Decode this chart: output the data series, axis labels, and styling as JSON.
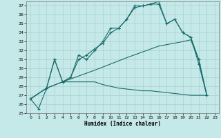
{
  "xlabel": "Humidex (Indice chaleur)",
  "xlim": [
    -0.5,
    23.5
  ],
  "ylim": [
    25,
    37.5
  ],
  "yticks": [
    25,
    26,
    27,
    28,
    29,
    30,
    31,
    32,
    33,
    34,
    35,
    36,
    37
  ],
  "xticks": [
    0,
    1,
    2,
    3,
    4,
    5,
    6,
    7,
    8,
    9,
    10,
    11,
    12,
    13,
    14,
    15,
    16,
    17,
    18,
    19,
    20,
    21,
    22,
    23
  ],
  "bg_color": "#c5e8e8",
  "grid_color": "#a8d0d0",
  "line_color": "#1a6b6b",
  "line1_x": [
    0,
    1,
    2,
    3,
    4,
    5,
    6,
    7,
    8,
    9,
    10,
    11,
    12,
    13,
    14,
    15,
    16,
    17,
    18,
    19,
    20,
    21,
    22
  ],
  "line1_y": [
    26.6,
    25.5,
    27.8,
    31.0,
    28.5,
    29.0,
    31.5,
    31.0,
    32.0,
    33.0,
    34.5,
    34.5,
    35.5,
    37.0,
    37.0,
    37.2,
    37.5,
    35.0,
    35.5,
    34.0,
    33.5,
    31.0,
    27.0
  ],
  "line2_x": [
    0,
    2,
    3,
    4,
    5,
    6,
    7,
    8,
    9,
    10,
    11,
    12,
    13,
    14,
    15,
    16,
    17,
    18,
    19,
    20,
    21,
    22
  ],
  "line2_y": [
    26.6,
    27.8,
    31.0,
    28.5,
    29.0,
    31.0,
    31.5,
    32.2,
    32.8,
    34.0,
    34.5,
    35.5,
    36.8,
    37.0,
    37.2,
    37.2,
    35.0,
    35.5,
    34.0,
    33.5,
    30.5,
    27.0
  ],
  "line3_x": [
    0,
    2,
    4,
    5,
    6,
    7,
    8,
    9,
    10,
    11,
    12,
    13,
    14,
    15,
    16,
    17,
    18,
    19,
    20,
    21,
    22
  ],
  "line3_y": [
    26.6,
    27.8,
    28.5,
    28.5,
    28.5,
    28.5,
    28.5,
    28.2,
    28.0,
    27.8,
    27.7,
    27.6,
    27.5,
    27.5,
    27.4,
    27.3,
    27.2,
    27.1,
    27.0,
    27.0,
    27.0
  ],
  "line4_x": [
    0,
    2,
    4,
    8,
    12,
    16,
    19,
    20,
    21,
    22
  ],
  "line4_y": [
    26.6,
    27.8,
    28.5,
    29.8,
    31.2,
    32.5,
    33.0,
    33.2,
    31.0,
    27.0
  ]
}
